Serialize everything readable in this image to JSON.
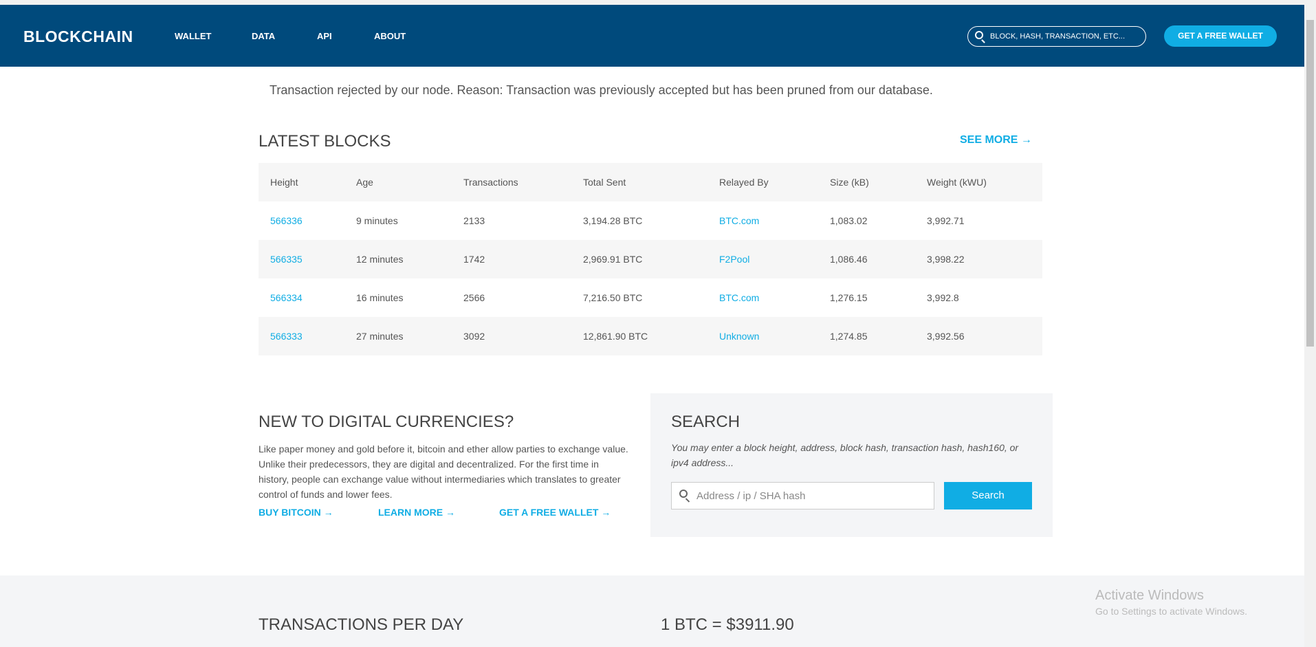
{
  "header": {
    "logo": "BLOCKCHAIN",
    "nav": [
      "WALLET",
      "DATA",
      "API",
      "ABOUT"
    ],
    "search_placeholder": "BLOCK, HASH, TRANSACTION, ETC...",
    "cta": "GET A FREE WALLET"
  },
  "message": "Transaction rejected by our node. Reason: Transaction was previously accepted but has been pruned from our database.",
  "latest_blocks": {
    "title": "LATEST BLOCKS",
    "see_more": "SEE MORE",
    "columns": [
      "Height",
      "Age",
      "Transactions",
      "Total Sent",
      "Relayed By",
      "Size (kB)",
      "Weight (kWU)"
    ],
    "rows": [
      [
        "566336",
        "9 minutes",
        "2133",
        "3,194.28 BTC",
        "BTC.com",
        "1,083.02",
        "3,992.71"
      ],
      [
        "566335",
        "12 minutes",
        "1742",
        "2,969.91 BTC",
        "F2Pool",
        "1,086.46",
        "3,998.22"
      ],
      [
        "566334",
        "16 minutes",
        "2566",
        "7,216.50 BTC",
        "BTC.com",
        "1,276.15",
        "3,992.8"
      ],
      [
        "566333",
        "27 minutes",
        "3092",
        "12,861.90 BTC",
        "Unknown",
        "1,274.85",
        "3,992.56"
      ]
    ]
  },
  "intro": {
    "title": "NEW TO DIGITAL CURRENCIES?",
    "body": "Like paper money and gold before it, bitcoin and ether allow parties to exchange value. Unlike their predecessors, they are digital and decentralized. For the first time in history, people can exchange value without intermediaries which translates to greater control of funds and lower fees.",
    "links": [
      "BUY BITCOIN",
      "LEARN MORE",
      "GET A FREE WALLET"
    ]
  },
  "search": {
    "title": "SEARCH",
    "description": "You may enter a block height, address, block hash, transaction hash, hash160, or ipv4 address...",
    "placeholder": "Address / ip / SHA hash",
    "button": "Search"
  },
  "stats": {
    "tx_title": "TRANSACTIONS PER DAY",
    "price": "1 BTC = $3911.90"
  },
  "watermark": {
    "title": "Activate Windows",
    "subtitle": "Go to Settings to activate Windows."
  },
  "colors": {
    "header": "#004a7c",
    "accent": "#10ade4"
  }
}
